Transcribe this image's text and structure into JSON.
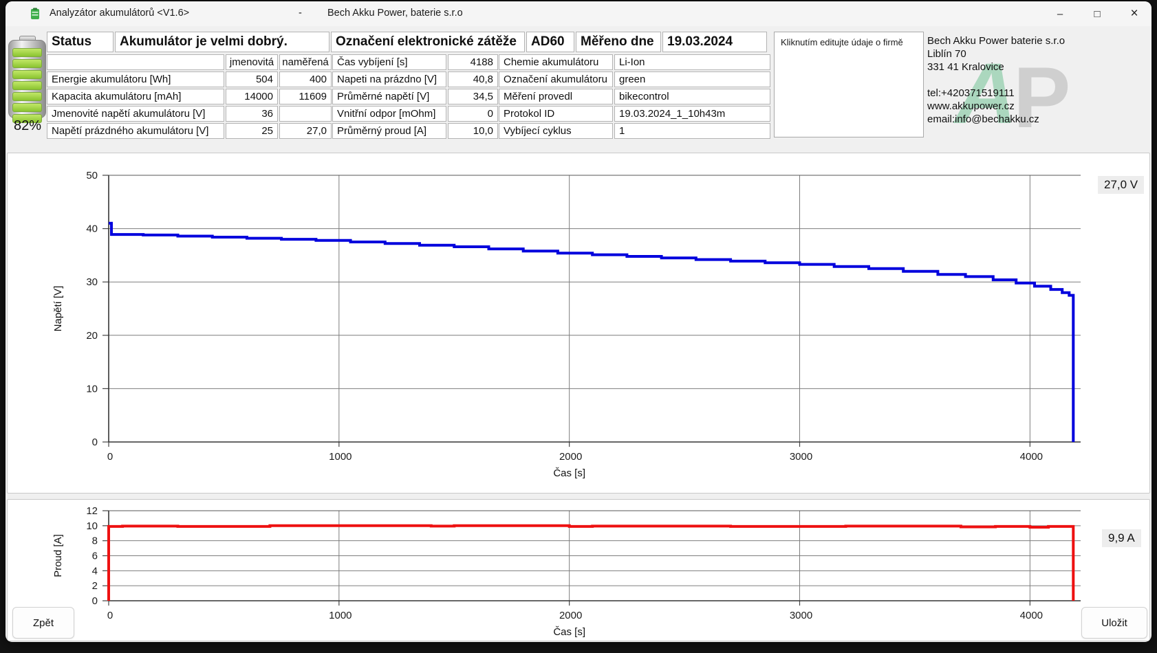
{
  "window": {
    "title_left": "Analyzátor akumulátorů <V1.6>",
    "title_sep": "-",
    "title_right": "Bech Akku Power, baterie s.r.o"
  },
  "icons": {
    "minimize": "–",
    "maximize": "□",
    "close": "×",
    "app_icon": "battery"
  },
  "battery": {
    "percent": "82%",
    "bars": 7,
    "bar_color": "#8bc431"
  },
  "status_row": {
    "cells": [
      "Status",
      "Akumulátor je velmi dobrý.",
      "Označení elektronické zátěže",
      "AD60",
      "Měřeno dne",
      "19.03.2024"
    ]
  },
  "left_table": {
    "rows": [
      [
        "",
        "jmenovitá",
        "naměřená"
      ],
      [
        "Energie akumulátoru [Wh]",
        "504",
        "400"
      ],
      [
        "Kapacita akumulátoru [mAh]",
        "14000",
        "11609"
      ],
      [
        "Jmenovité napětí akumulátoru [V]",
        "36",
        ""
      ],
      [
        "Napětí prázdného akumulátoru [V]",
        "25",
        "27,0"
      ]
    ]
  },
  "middle_table": {
    "rows": [
      [
        "Čas vybíjení [s]",
        "4188"
      ],
      [
        "Napeti na prázdno [V]",
        "40,8"
      ],
      [
        "Průměrné napětí [V]",
        "34,5"
      ],
      [
        "Vnitřní odpor [mOhm]",
        "0"
      ],
      [
        "Průměrný proud [A]",
        "10,0"
      ]
    ]
  },
  "right_table": {
    "rows": [
      [
        "Chemie akumulátoru",
        "Li-Ion"
      ],
      [
        "Označení akumulátoru",
        "green"
      ],
      [
        "Měření provedl",
        "bikecontrol"
      ],
      [
        "Protokol ID",
        "19.03.2024_1_10h43m"
      ],
      [
        "Vybíjecí cyklus",
        "1"
      ]
    ]
  },
  "company_edit": {
    "hint": "Kliknutím editujte údaje o firmě"
  },
  "company_info": {
    "lines": [
      "Bech Akku Power baterie s.r.o",
      "Liblín 70",
      "331 41 Kralovice",
      "",
      "tel:+420371519111",
      "www.akkupower.cz",
      "email:info@bechakku.cz"
    ],
    "logo_letters": [
      "A",
      "P"
    ]
  },
  "annotations": {
    "voltage": "27,0 V",
    "current": "9,9 A"
  },
  "buttons": {
    "back": "Zpět",
    "save": "Uložit"
  },
  "chart_data": [
    {
      "id": "voltage",
      "type": "line",
      "title": "",
      "xlabel": "Čas [s]",
      "ylabel": "Napětí [V]",
      "xlim": [
        0,
        4220
      ],
      "ylim": [
        0,
        50
      ],
      "xticks": [
        0,
        1000,
        2000,
        3000,
        4000
      ],
      "yticks": [
        0,
        10,
        20,
        30,
        40,
        50
      ],
      "grid": true,
      "step": true,
      "line_color": "#0000dd",
      "end_annotation": "27,0 V",
      "series": [
        {
          "name": "Napětí",
          "points": [
            [
              0,
              41
            ],
            [
              12,
              38.9
            ],
            [
              150,
              38.8
            ],
            [
              300,
              38.6
            ],
            [
              450,
              38.4
            ],
            [
              600,
              38.2
            ],
            [
              750,
              38.0
            ],
            [
              900,
              37.8
            ],
            [
              1050,
              37.5
            ],
            [
              1200,
              37.2
            ],
            [
              1350,
              36.9
            ],
            [
              1500,
              36.6
            ],
            [
              1650,
              36.2
            ],
            [
              1800,
              35.8
            ],
            [
              1950,
              35.4
            ],
            [
              2100,
              35.1
            ],
            [
              2250,
              34.8
            ],
            [
              2400,
              34.5
            ],
            [
              2550,
              34.2
            ],
            [
              2700,
              33.9
            ],
            [
              2850,
              33.6
            ],
            [
              3000,
              33.3
            ],
            [
              3150,
              32.9
            ],
            [
              3300,
              32.5
            ],
            [
              3450,
              32.0
            ],
            [
              3600,
              31.4
            ],
            [
              3720,
              31.0
            ],
            [
              3840,
              30.4
            ],
            [
              3940,
              29.8
            ],
            [
              4020,
              29.2
            ],
            [
              4090,
              28.6
            ],
            [
              4140,
              28.0
            ],
            [
              4170,
              27.5
            ],
            [
              4188,
              27.0
            ],
            [
              4188,
              0
            ]
          ]
        }
      ]
    },
    {
      "id": "current",
      "type": "line",
      "title": "",
      "xlabel": "Čas [s]",
      "ylabel": "Proud [A]",
      "xlim": [
        0,
        4220
      ],
      "ylim": [
        0,
        12
      ],
      "xticks": [
        0,
        1000,
        2000,
        3000,
        4000
      ],
      "yticks": [
        0,
        2,
        4,
        6,
        8,
        10,
        12
      ],
      "grid": true,
      "step": true,
      "line_color": "#ee1111",
      "end_annotation": "9,9 A",
      "series": [
        {
          "name": "Proud",
          "points": [
            [
              0,
              0
            ],
            [
              0,
              9.9
            ],
            [
              60,
              9.95
            ],
            [
              300,
              9.9
            ],
            [
              700,
              10.0
            ],
            [
              1400,
              9.95
            ],
            [
              1500,
              10.0
            ],
            [
              2000,
              9.9
            ],
            [
              2100,
              9.95
            ],
            [
              2700,
              9.9
            ],
            [
              3200,
              9.95
            ],
            [
              3700,
              9.85
            ],
            [
              3850,
              9.9
            ],
            [
              4000,
              9.8
            ],
            [
              4080,
              9.9
            ],
            [
              4188,
              9.9
            ],
            [
              4188,
              0
            ]
          ]
        }
      ]
    }
  ]
}
